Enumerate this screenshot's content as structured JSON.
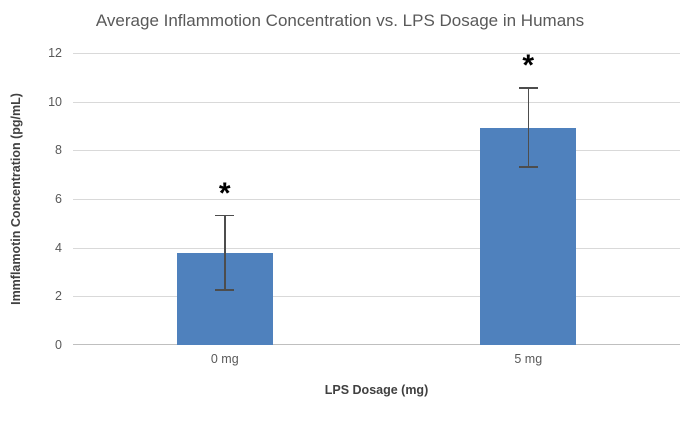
{
  "chart_data": {
    "type": "bar",
    "title": "Average Inflammotion Concentration vs. LPS Dosage in Humans",
    "xlabel": "LPS Dosage (mg)",
    "ylabel": "Immflamotin Concentration (pg/mL)",
    "categories": [
      "0 mg",
      "5 mg"
    ],
    "values": [
      3.8,
      8.9
    ],
    "error_low": [
      2.3,
      7.35
    ],
    "error_high": [
      5.35,
      10.6
    ],
    "significance_markers": [
      "*",
      "*"
    ],
    "ylim": [
      0,
      12
    ],
    "yticks": [
      0,
      2,
      4,
      6,
      8,
      10,
      12
    ],
    "grid": "horizontal-gridlines",
    "legend": "none",
    "colors": {
      "bar": "#4f81bd",
      "gridline": "#d9d9d9",
      "axis_line": "#bfbfbf",
      "title_text": "#595959",
      "tick_text": "#595959",
      "axis_label_text": "#404040",
      "error_bar": "#4d4d4d",
      "marker": "#000000"
    }
  }
}
